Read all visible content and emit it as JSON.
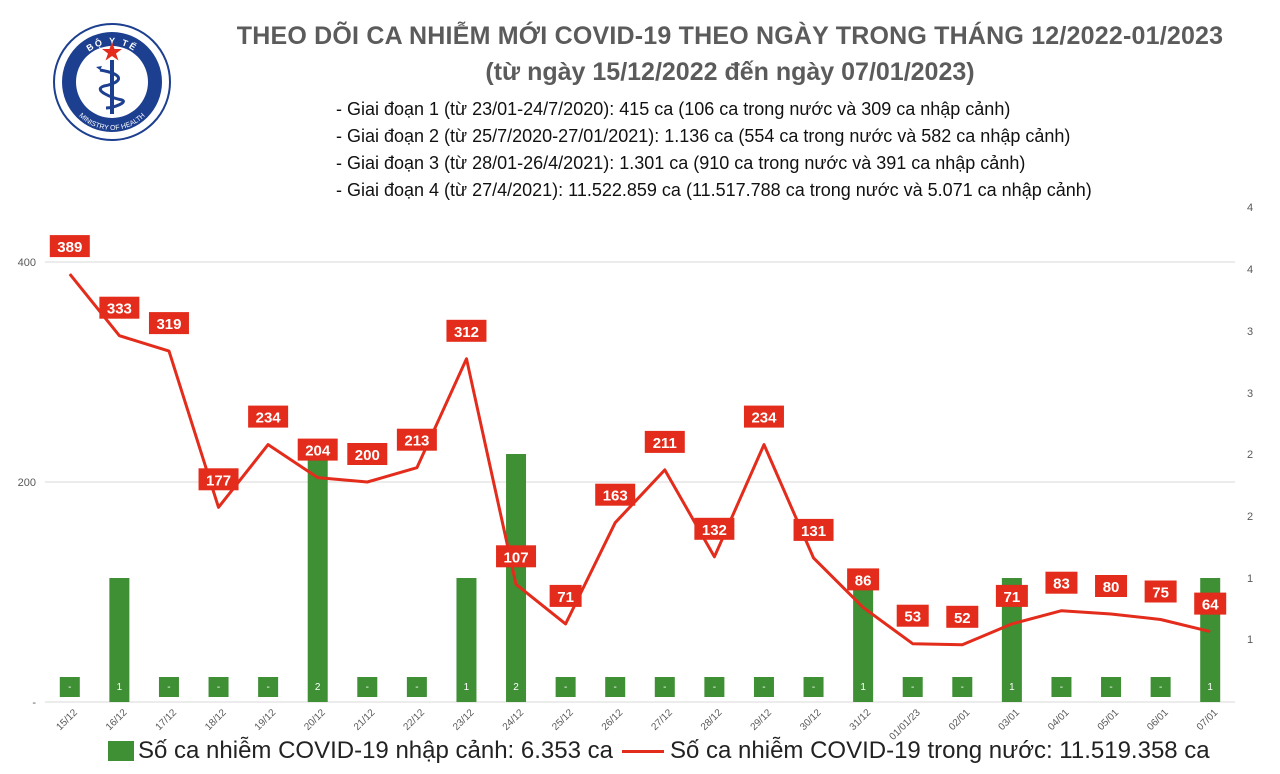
{
  "header": {
    "title": "THEO DÕI CA NHIỄM MỚI COVID-19 THEO NGÀY TRONG THÁNG 12/2022-01/2023",
    "subtitle": "(từ ngày 15/12/2022 đến ngày 07/01/2023)",
    "phases": [
      "- Giai đoạn 1 (từ 23/01-24/7/2020): 415 ca (106 ca trong nước và 309 ca nhập cảnh)",
      "- Giai đoạn 2 (từ 25/7/2020-27/01/2021): 1.136 ca (554 ca trong nước và 582 ca nhập cảnh)",
      "- Giai đoạn 3 (từ 28/01-26/4/2021): 1.301 ca (910 ca trong nước và 391 ca nhập cảnh)",
      "- Giai đoạn 4 (từ 27/4/2021): 11.522.859 ca (11.517.788 ca trong nước và 5.071 ca nhập cảnh)"
    ]
  },
  "logo": {
    "top_text": "BỘ Y TẾ",
    "bottom_text": "MINISTRY OF HEALTH"
  },
  "colors": {
    "bar": "#3f8f35",
    "line": "#e32c1b",
    "label_bg": "#e32c1b",
    "title": "#5b5b5b",
    "logo_blue": "#1d3f8f"
  },
  "legend": {
    "bar_label": "Số ca nhiễm COVID-19 nhập cảnh: 6.353 ca",
    "line_label": "Số ca nhiễm COVID-19 trong nước: 11.519.358 ca"
  },
  "chart_data": {
    "type": "bar+line",
    "categories": [
      "15/12",
      "16/12",
      "17/12",
      "18/12",
      "19/12",
      "20/12",
      "21/12",
      "22/12",
      "23/12",
      "24/12",
      "25/12",
      "26/12",
      "27/12",
      "28/12",
      "29/12",
      "30/12",
      "31/12",
      "01/01/23",
      "02/01",
      "03/01",
      "04/01",
      "05/01",
      "06/01",
      "07/01"
    ],
    "series": [
      {
        "name": "Số ca nhiễm COVID-19 nhập cảnh: 6.353 ca",
        "kind": "bar",
        "axis": "right",
        "values": [
          0,
          1,
          0,
          0,
          0,
          2,
          0,
          0,
          1,
          2,
          0,
          0,
          0,
          0,
          0,
          0,
          1,
          0,
          0,
          1,
          0,
          0,
          0,
          1
        ],
        "labels": [
          "-",
          "1",
          "-",
          "-",
          "-",
          "2",
          "-",
          "-",
          "1",
          "2",
          "-",
          "-",
          "-",
          "-",
          "-",
          "-",
          "1",
          "-",
          "-",
          "1",
          "-",
          "-",
          "-",
          "1"
        ]
      },
      {
        "name": "Số ca nhiễm COVID-19 trong nước: 11.519.358 ca",
        "kind": "line",
        "axis": "left",
        "values": [
          389,
          333,
          319,
          177,
          234,
          204,
          200,
          213,
          312,
          107,
          71,
          163,
          211,
          132,
          234,
          131,
          86,
          53,
          52,
          71,
          83,
          80,
          75,
          64
        ]
      }
    ],
    "y_left": {
      "ticks": [
        0,
        200,
        400
      ],
      "tick_labels": [
        "-",
        "200",
        "400"
      ],
      "ylim": [
        0,
        400
      ]
    },
    "y_right": {
      "tick_labels": [
        "1",
        "1",
        "2",
        "2",
        "3",
        "3",
        "4",
        "4"
      ]
    },
    "grid": true,
    "legend_position": "bottom"
  }
}
